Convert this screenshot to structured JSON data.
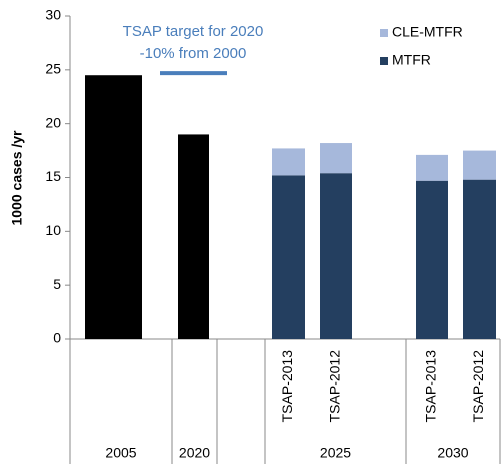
{
  "chart_data": {
    "type": "stacked_bar",
    "y_label": "1000 cases /yr",
    "groups": [
      "2005",
      "2020",
      "2025",
      "2030"
    ],
    "categories": [
      null,
      null,
      "TSAP-2013",
      "TSAP-2012",
      "TSAP-2013",
      "TSAP-2012"
    ],
    "values": [
      24.5,
      19.0,
      null,
      null,
      null,
      null
    ],
    "color": "#000000",
    "series": [
      {
        "name": "MTFR",
        "color": "#243f60",
        "values": [
          null,
          null,
          15.2,
          15.4,
          14.7,
          14.8
        ]
      },
      {
        "name": "CLE-MTFR",
        "color": "#a6b8db",
        "values": [
          null,
          null,
          2.5,
          2.8,
          2.4,
          2.7
        ]
      }
    ],
    "annotation": {
      "lines": [
        "TSAP target for 2020",
        "-10% from 2000"
      ],
      "value": 24.7,
      "color": "#4a7ebb"
    },
    "ylim": [
      0,
      30
    ],
    "yticks": [
      0,
      5,
      10,
      15,
      20,
      25,
      30
    ],
    "legend": "top-right"
  }
}
